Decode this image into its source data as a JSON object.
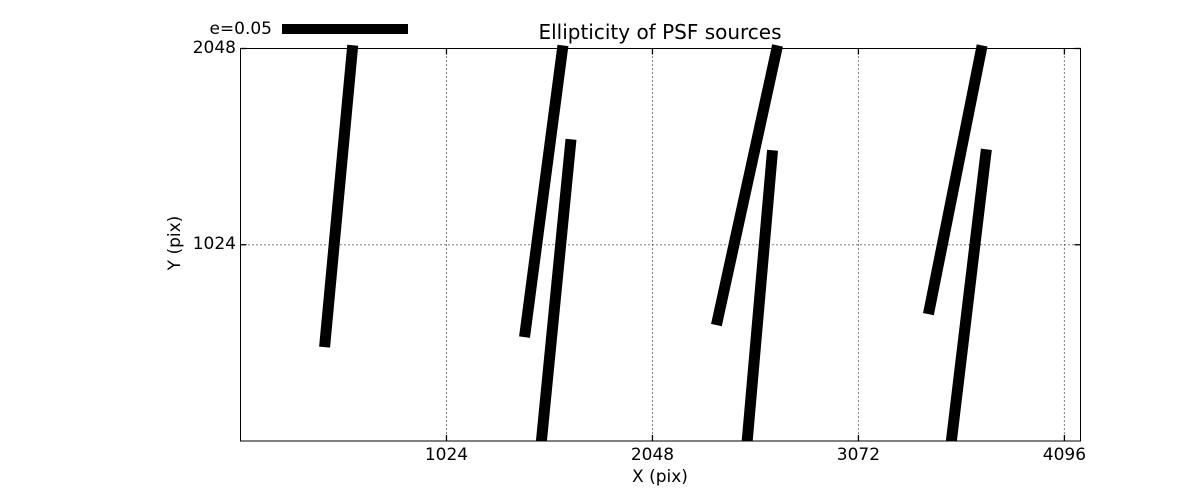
{
  "figure": {
    "background": "#ffffff",
    "title": "Ellipticity of PSF sources"
  },
  "legend": {
    "label": "e=0.05",
    "bar_color": "#000000",
    "bar_e_value": 0.05
  },
  "chart_data": {
    "type": "whisker-quiver",
    "title": "Ellipticity of PSF sources",
    "xlabel": "X (pix)",
    "ylabel": "Y (pix)",
    "xlim": [
      0,
      4176
    ],
    "ylim": [
      0,
      2048
    ],
    "grid": "dotted",
    "legend_position": "upper-left-above-axes",
    "line_color": "#000000",
    "x_ticks": {
      "values": [
        1024,
        2048,
        3072,
        4096
      ],
      "labels": [
        "1024",
        "2048",
        "3072",
        "4096"
      ]
    },
    "y_ticks": {
      "values": [
        1024,
        2048
      ],
      "labels": [
        "1024",
        "2048"
      ]
    },
    "whiskers": [
      {
        "x1": 558,
        "y1": 2065,
        "x2": 418,
        "y2": 490
      },
      {
        "x1": 1603,
        "y1": 2064,
        "x2": 1412,
        "y2": 542
      },
      {
        "x1": 1643,
        "y1": 1574,
        "x2": 1496,
        "y2": 0
      },
      {
        "x1": 2670,
        "y1": 2064,
        "x2": 2366,
        "y2": 605
      },
      {
        "x1": 2645,
        "y1": 1517,
        "x2": 2519,
        "y2": 0
      },
      {
        "x1": 3687,
        "y1": 2064,
        "x2": 3420,
        "y2": 662
      },
      {
        "x1": 3708,
        "y1": 1522,
        "x2": 3534,
        "y2": 0
      }
    ]
  }
}
